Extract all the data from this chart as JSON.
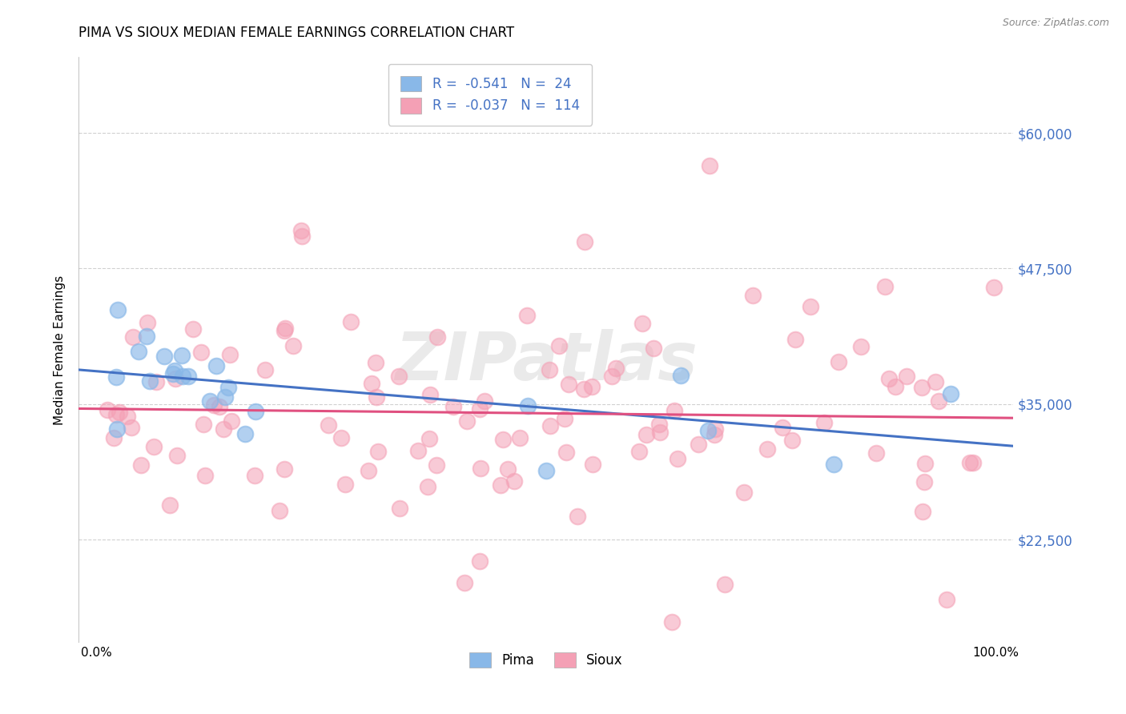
{
  "title": "PIMA VS SIOUX MEDIAN FEMALE EARNINGS CORRELATION CHART",
  "source": "Source: ZipAtlas.com",
  "ylabel": "Median Female Earnings",
  "watermark": "ZIPatlas",
  "x_tick_labels": [
    "0.0%",
    "100.0%"
  ],
  "y_tick_labels": [
    "$22,500",
    "$35,000",
    "$47,500",
    "$60,000"
  ],
  "y_tick_values": [
    22500,
    35000,
    47500,
    60000
  ],
  "ylim": [
    13000,
    67000
  ],
  "xlim": [
    -0.02,
    1.02
  ],
  "pima_color": "#89b8e8",
  "sioux_color": "#f4a0b5",
  "pima_line_color": "#4472c4",
  "sioux_line_color": "#e05080",
  "legend_r_pima": "-0.541",
  "legend_n_pima": "24",
  "legend_r_sioux": "-0.037",
  "legend_n_sioux": "114",
  "legend_number_color": "#4472c4",
  "background_color": "#ffffff",
  "grid_color": "#cccccc",
  "title_fontsize": 12,
  "axis_label_fontsize": 11,
  "tick_fontsize": 11,
  "ytick_color": "#4472c4"
}
